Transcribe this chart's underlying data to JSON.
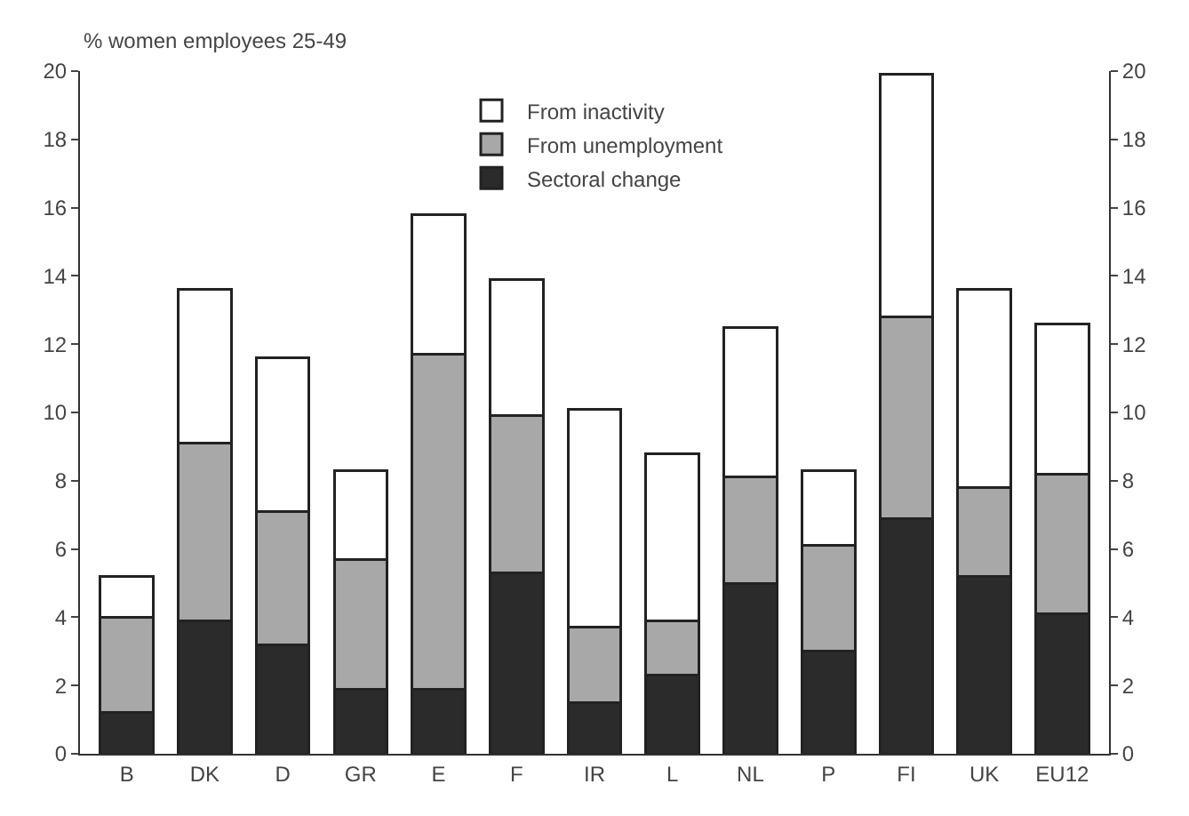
{
  "chart_data": {
    "type": "bar",
    "stacked": true,
    "ylabel": "% women employees 25-49",
    "categories": [
      "B",
      "DK",
      "D",
      "GR",
      "E",
      "F",
      "IR",
      "L",
      "NL",
      "P",
      "FI",
      "UK",
      "EU12"
    ],
    "series": [
      {
        "name": "Sectoral change",
        "color": "#2b2b2b",
        "values": [
          1.2,
          3.9,
          3.2,
          1.9,
          1.9,
          5.3,
          1.5,
          2.3,
          5.0,
          3.0,
          6.9,
          5.2,
          4.1
        ]
      },
      {
        "name": "From unemployment",
        "color": "#a8a8a8",
        "values": [
          2.8,
          5.2,
          3.9,
          3.8,
          9.8,
          4.6,
          2.2,
          1.6,
          3.1,
          3.1,
          5.9,
          2.6,
          4.1
        ]
      },
      {
        "name": "From inactivity",
        "color": "#ffffff",
        "values": [
          1.2,
          4.5,
          4.5,
          2.6,
          4.1,
          4.0,
          6.4,
          4.9,
          4.4,
          2.2,
          7.1,
          5.8,
          4.4
        ]
      }
    ],
    "ylim": [
      0,
      20
    ],
    "yticks": [
      0,
      2,
      4,
      6,
      8,
      10,
      12,
      14,
      16,
      18,
      20
    ],
    "y2lim": [
      0,
      20
    ],
    "y2ticks": [
      0,
      2,
      4,
      6,
      8,
      10,
      12,
      14,
      16,
      18,
      20
    ],
    "legend": "top"
  }
}
